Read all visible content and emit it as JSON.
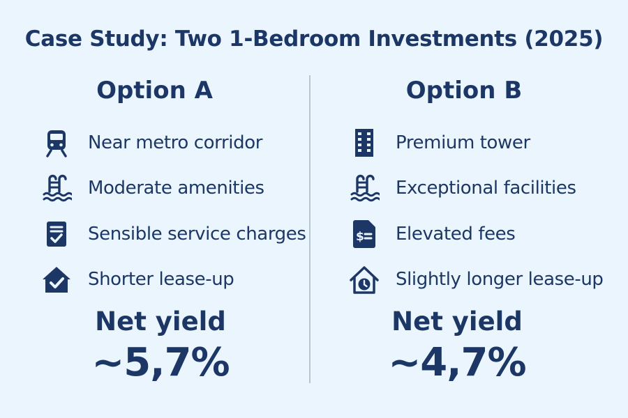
{
  "title": "Case Study: Two 1-Bedroom Investments (2025)",
  "colors": {
    "background": "#eaf5fd",
    "text": "#1c3766",
    "divider": "#b8c6d3"
  },
  "option_a": {
    "heading": "Option A",
    "features": [
      {
        "icon": "train-icon",
        "label": "Near metro corridor"
      },
      {
        "icon": "pool-icon",
        "label": "Moderate amenities"
      },
      {
        "icon": "document-check-icon",
        "label": "Sensible service charges"
      },
      {
        "icon": "house-check-icon",
        "label": "Shorter lease-up"
      }
    ],
    "yield_label": "Net yield",
    "yield_value": "~5,7%"
  },
  "option_b": {
    "heading": "Option B",
    "features": [
      {
        "icon": "building-icon",
        "label": "Premium tower"
      },
      {
        "icon": "pool-icon",
        "label": "Exceptional facilities"
      },
      {
        "icon": "fee-document-icon",
        "label": "Elevated fees"
      },
      {
        "icon": "house-clock-icon",
        "label": "Slightly longer lease-up"
      }
    ],
    "yield_label": "Net yield",
    "yield_value": "~4,7%"
  }
}
